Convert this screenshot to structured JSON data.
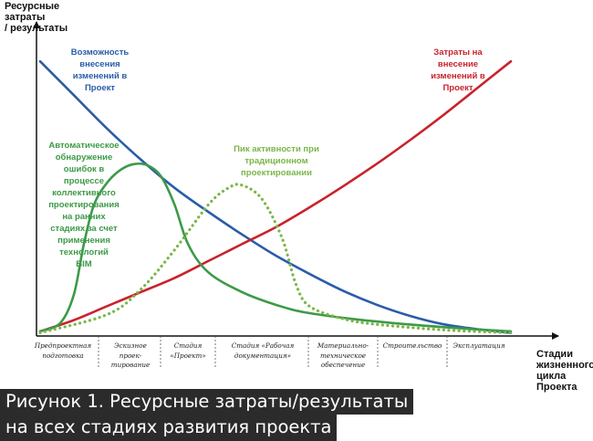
{
  "chart_data": {
    "type": "line",
    "ylabel": "Ресурсные затраты / результаты",
    "xlabel": "Стадии жизненного цикла Проекта",
    "stages": [
      "Предпроектная подготовка",
      "Эскизное проек- тирование",
      "Стадия «Проект»",
      "Стадия «Рабочая документация»",
      "Материально- техническое обеспечение",
      "Строительство",
      "Эксплуатация"
    ],
    "x_range": [
      0,
      7
    ],
    "y_range": [
      0,
      100
    ],
    "grid": false,
    "series": [
      {
        "name": "Возможность внесения изменений в Проект",
        "color": "#2a5caa",
        "style": "solid",
        "points": [
          [
            0,
            97
          ],
          [
            0.5,
            85
          ],
          [
            1,
            73
          ],
          [
            1.5,
            62
          ],
          [
            2,
            52
          ],
          [
            2.5,
            43.5
          ],
          [
            3,
            35.5
          ],
          [
            3.5,
            28
          ],
          [
            4,
            21.5
          ],
          [
            4.5,
            15.5
          ],
          [
            5,
            10.5
          ],
          [
            5.5,
            6.5
          ],
          [
            6,
            3.5
          ],
          [
            6.5,
            1.8
          ],
          [
            7,
            0.5
          ]
        ]
      },
      {
        "name": "Затраты на внесение изменений в Проект",
        "color": "#c8232b",
        "style": "solid",
        "points": [
          [
            0,
            1
          ],
          [
            0.5,
            5
          ],
          [
            1,
            10
          ],
          [
            1.5,
            15
          ],
          [
            2,
            20
          ],
          [
            2.5,
            26
          ],
          [
            3,
            32
          ],
          [
            3.5,
            38
          ],
          [
            4,
            45
          ],
          [
            4.5,
            52.5
          ],
          [
            5,
            60.5
          ],
          [
            5.5,
            69
          ],
          [
            6,
            78
          ],
          [
            6.5,
            87.5
          ],
          [
            7,
            97
          ]
        ]
      },
      {
        "name": "Автоматическое обнаружение ошибок в процессе коллективного проектирования на ранних стадиях за счет применения технологий BIM",
        "color": "#3c9a47",
        "style": "solid",
        "points": [
          [
            0,
            1
          ],
          [
            0.3,
            4
          ],
          [
            0.5,
            14
          ],
          [
            0.65,
            32
          ],
          [
            0.8,
            46
          ],
          [
            1,
            54
          ],
          [
            1.2,
            58.5
          ],
          [
            1.4,
            60.5
          ],
          [
            1.6,
            60
          ],
          [
            1.8,
            56
          ],
          [
            2,
            46
          ],
          [
            2.2,
            32
          ],
          [
            2.5,
            22
          ],
          [
            3,
            15
          ],
          [
            3.5,
            10.5
          ],
          [
            4,
            7.5
          ],
          [
            5,
            4.5
          ],
          [
            6,
            2.5
          ],
          [
            7,
            1
          ]
        ]
      },
      {
        "name": "Пик активности при традиционном проектировании",
        "color": "#7ab648",
        "style": "dotted",
        "points": [
          [
            0,
            0.5
          ],
          [
            1,
            7
          ],
          [
            1.5,
            16
          ],
          [
            2,
            30
          ],
          [
            2.5,
            46
          ],
          [
            2.8,
            52
          ],
          [
            3,
            53
          ],
          [
            3.3,
            48
          ],
          [
            3.6,
            34
          ],
          [
            3.8,
            18
          ],
          [
            4,
            10
          ],
          [
            4.5,
            5.5
          ],
          [
            5,
            3.5
          ],
          [
            6,
            1.5
          ],
          [
            7,
            0.5
          ]
        ]
      }
    ]
  },
  "annotations": {
    "blue": "Возможность\nвнесения\nизменений в\nПроект",
    "red": "Затраты на\nвнесение\nизменений в\nПроект",
    "green": "Автоматическое\nобнаружение\nошибок в\nпроцессе\nколлективного\nпроектирования\nна ранних\nстадиях за счет\nприменения\nтехнологий\nBIM",
    "peak": "Пик активности при\nтрадиционном\nпроектировании"
  },
  "axis_titles": {
    "y": "Ресурсные\nзатраты\n/ результаты",
    "x": "Стадии\nжизненного\nцикла Проекта"
  },
  "stage_labels": [
    "Предпроектная\nподготовка",
    "Эскизное\nпроек-\nтирование",
    "Стадия\n«Проект»",
    "Стадия «Рабочая\nдокументация»",
    "Материально-\nтехническое\nобеспечение",
    "Строительство",
    "Эксплуатация"
  ],
  "caption": {
    "line1": "Рисунок 1. Ресурсные затраты/результаты",
    "line2": "на всех стадиях развития проекта"
  }
}
